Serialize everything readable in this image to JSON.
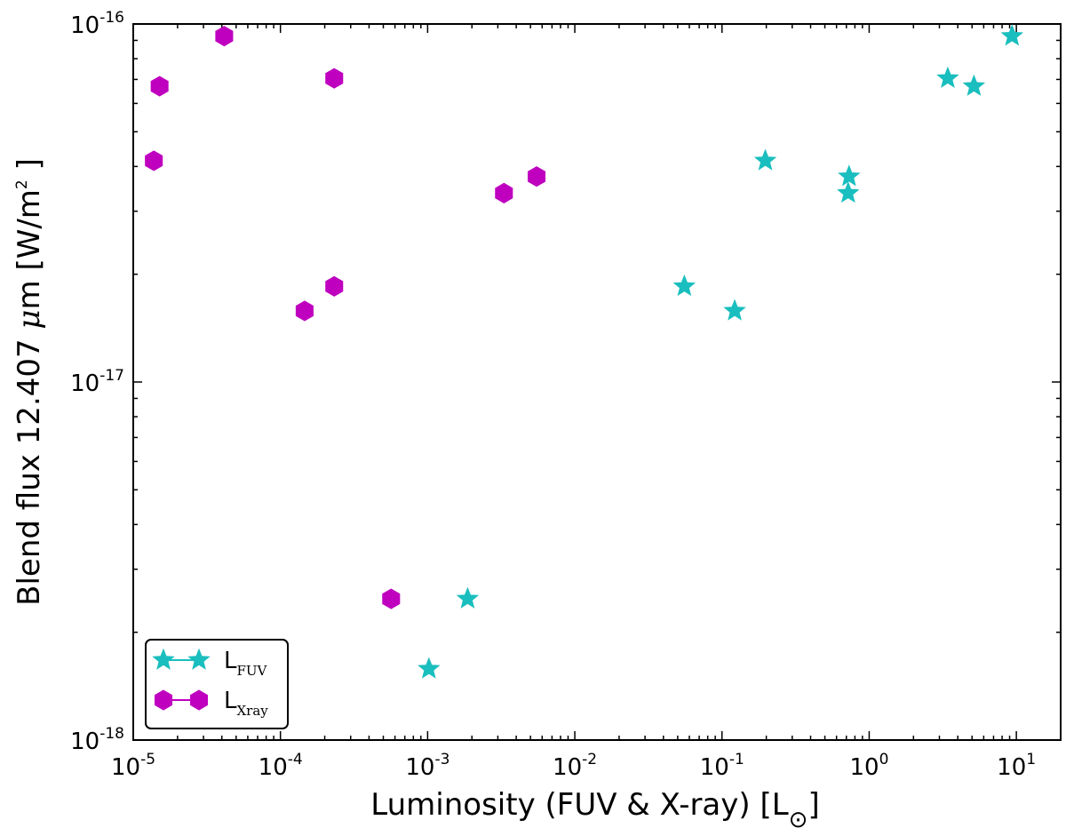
{
  "chart_data": {
    "type": "scatter",
    "xscale": "log",
    "yscale": "log",
    "xlim": [
      1e-05,
      20
    ],
    "ylim": [
      1e-18,
      1e-16
    ],
    "xlabel": "Luminosity (FUV & X-ray) [L",
    "xlabel_sub": "⊙",
    "xlabel_end": "]",
    "ylabel_pre": "Blend flux 12.407 ",
    "ylabel_mu": "μ",
    "ylabel_post": "m [W/m",
    "ylabel_sup": "2",
    "ylabel_end": " ]",
    "x_tick_labels": [
      {
        "base": "10",
        "exp": "-5",
        "value": 1e-05
      },
      {
        "base": "10",
        "exp": "-4",
        "value": 0.0001
      },
      {
        "base": "10",
        "exp": "-3",
        "value": 0.001
      },
      {
        "base": "10",
        "exp": "-2",
        "value": 0.01
      },
      {
        "base": "10",
        "exp": "-1",
        "value": 0.1
      },
      {
        "base": "10",
        "exp": "0",
        "value": 1
      },
      {
        "base": "10",
        "exp": "1",
        "value": 10
      }
    ],
    "y_tick_labels": [
      {
        "base": "10",
        "exp": "-18",
        "value": 1e-18
      },
      {
        "base": "10",
        "exp": "-17",
        "value": 1e-17
      },
      {
        "base": "10",
        "exp": "-16",
        "value": 1e-16
      }
    ],
    "series": [
      {
        "name": "FUV",
        "legend_main": "L",
        "legend_sub": "FUV",
        "marker": "star",
        "color": "#1ABEBE",
        "points": [
          {
            "x": 0.00102,
            "y": 1.58e-18
          },
          {
            "x": 0.00187,
            "y": 2.48e-18
          },
          {
            "x": 0.0555,
            "y": 1.85e-17
          },
          {
            "x": 0.122,
            "y": 1.58e-17
          },
          {
            "x": 0.197,
            "y": 4.15e-17
          },
          {
            "x": 0.73,
            "y": 3.75e-17
          },
          {
            "x": 0.72,
            "y": 3.37e-17
          },
          {
            "x": 3.42,
            "y": 7.05e-17
          },
          {
            "x": 5.15,
            "y": 6.7e-17
          },
          {
            "x": 9.35,
            "y": 9.25e-17
          }
        ]
      },
      {
        "name": "Xray",
        "legend_main": "L",
        "legend_sub": "Xray",
        "marker": "hexagon",
        "color": "#BF00BF",
        "points": [
          {
            "x": 1.38e-05,
            "y": 4.15e-17
          },
          {
            "x": 1.51e-05,
            "y": 6.7e-17
          },
          {
            "x": 4.15e-05,
            "y": 9.25e-17
          },
          {
            "x": 0.000146,
            "y": 1.58e-17
          },
          {
            "x": 0.000232,
            "y": 1.85e-17
          },
          {
            "x": 0.000232,
            "y": 7.05e-17
          },
          {
            "x": 0.000565,
            "y": 2.48e-18
          },
          {
            "x": 0.0033,
            "y": 3.37e-17
          },
          {
            "x": 0.0055,
            "y": 3.75e-17
          }
        ]
      }
    ],
    "legend_position": "lower-left"
  }
}
